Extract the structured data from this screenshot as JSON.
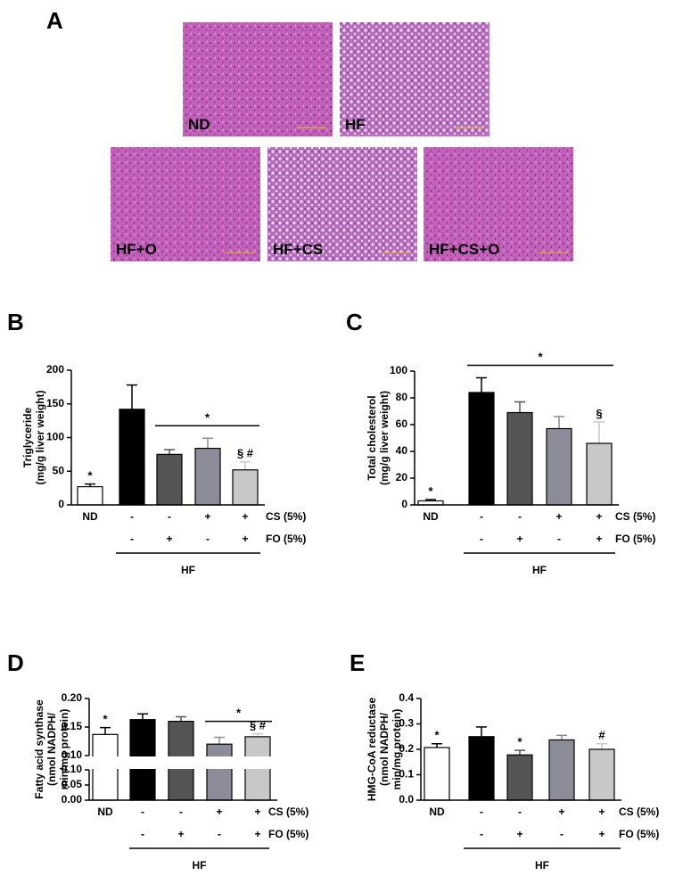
{
  "panel_a": {
    "label": "A",
    "images": [
      "ND",
      "HF",
      "HF+O",
      "HF+CS",
      "HF+CS+O"
    ]
  },
  "chart_data": [
    {
      "type": "bar",
      "label": "B",
      "ylabel": [
        "Triglyceride",
        "(mg/g liver weight)"
      ],
      "categories": [
        "ND",
        null,
        null,
        null,
        null
      ],
      "colors": [
        "#ffffff",
        "#000000",
        "#555555",
        "#8c8c98",
        "#c8c8c8"
      ],
      "values": [
        27,
        142,
        75,
        84,
        52
      ],
      "errors": [
        4,
        36,
        7,
        15,
        12
      ],
      "ylim": [
        0,
        200
      ],
      "yticks": [
        0,
        50,
        100,
        150,
        200
      ],
      "rows": [
        {
          "label": "CS (5%)",
          "marks": [
            null,
            "-",
            "-",
            "+",
            "+"
          ]
        },
        {
          "label": "FO (5%)",
          "marks": [
            null,
            "-",
            "+",
            "-",
            "+"
          ]
        }
      ],
      "group": "HF",
      "annotations": [
        {
          "text": "*",
          "bar": 0
        },
        {
          "text": "*",
          "bars": [
            2,
            4
          ]
        },
        {
          "text": "§ #",
          "bar": 4
        }
      ]
    },
    {
      "type": "bar",
      "label": "C",
      "ylabel": [
        "Total cholesterol",
        "(mg/g liver weight)"
      ],
      "categories": [
        "ND",
        null,
        null,
        null,
        null
      ],
      "colors": [
        "#ffffff",
        "#000000",
        "#555555",
        "#8c8c98",
        "#c8c8c8"
      ],
      "values": [
        3,
        84,
        69,
        57,
        46
      ],
      "errors": [
        1,
        11,
        8,
        9,
        16
      ],
      "ylim": [
        0,
        100
      ],
      "yticks": [
        0,
        20,
        40,
        60,
        80,
        100
      ],
      "rows": [
        {
          "label": "CS (5%)",
          "marks": [
            null,
            "-",
            "-",
            "+",
            "+"
          ]
        },
        {
          "label": "FO (5%)",
          "marks": [
            null,
            "-",
            "+",
            "-",
            "+"
          ]
        }
      ],
      "group": "HF",
      "annotations": [
        {
          "text": "*",
          "bar": 0
        },
        {
          "text": "*",
          "bars": [
            1,
            4
          ]
        },
        {
          "text": "§",
          "bar": 4
        }
      ]
    },
    {
      "type": "bar",
      "label": "D",
      "ylabel": [
        "Fatty acid synthase",
        "(nmol NADPH/",
        "min/mg protein)"
      ],
      "categories": [
        "ND",
        null,
        null,
        null,
        null
      ],
      "colors": [
        "#ffffff",
        "#000000",
        "#555555",
        "#8c8c98",
        "#c8c8c8"
      ],
      "values": [
        0.137,
        0.163,
        0.16,
        0.12,
        0.133
      ],
      "errors": [
        0.012,
        0.01,
        0.008,
        0.012,
        0.005
      ],
      "segments": [
        {
          "ylim": [
            0,
            0.1
          ],
          "yticks": [
            {
              "value": 0,
              "label": "0.00"
            },
            {
              "value": 0.05,
              "label": "0.05"
            },
            {
              "value": 0.1,
              "label": "0.10"
            }
          ]
        },
        {
          "ylim": [
            0.1,
            0.2
          ],
          "yticks": [
            {
              "value": 0.1,
              "label": "0.10"
            },
            {
              "value": 0.15,
              "label": "0.15"
            },
            {
              "value": 0.2,
              "label": "0.20"
            }
          ]
        }
      ],
      "rows": [
        {
          "label": "CS (5%)",
          "marks": [
            null,
            "-",
            "-",
            "+",
            "+"
          ]
        },
        {
          "label": "FO (5%)",
          "marks": [
            null,
            "-",
            "+",
            "-",
            "+"
          ]
        }
      ],
      "group": "HF",
      "annotations": [
        {
          "text": "*",
          "bar": 0
        },
        {
          "text": "*",
          "bars": [
            3,
            4
          ]
        },
        {
          "text": "§ #",
          "bar": 4
        }
      ]
    },
    {
      "type": "bar",
      "label": "E",
      "ylabel": [
        "HMG-CoA reductase",
        "(nmol NADPH/",
        "min/mg protein)"
      ],
      "categories": [
        "ND",
        null,
        null,
        null,
        null
      ],
      "colors": [
        "#ffffff",
        "#000000",
        "#555555",
        "#8c8c98",
        "#c8c8c8"
      ],
      "values": [
        0.207,
        0.25,
        0.178,
        0.237,
        0.2
      ],
      "errors": [
        0.015,
        0.038,
        0.018,
        0.018,
        0.022
      ],
      "ylim": [
        0,
        0.4
      ],
      "yticks": [
        {
          "value": 0,
          "label": "0.0"
        },
        {
          "value": 0.1,
          "label": "0.1"
        },
        {
          "value": 0.2,
          "label": "0.2"
        },
        {
          "value": 0.3,
          "label": "0.3"
        },
        {
          "value": 0.4,
          "label": "0.4"
        }
      ],
      "rows": [
        {
          "label": "CS (5%)",
          "marks": [
            null,
            "-",
            "-",
            "+",
            "+"
          ]
        },
        {
          "label": "FO (5%)",
          "marks": [
            null,
            "-",
            "+",
            "-",
            "+"
          ]
        }
      ],
      "group": "HF",
      "annotations": [
        {
          "text": "*",
          "bar": 0
        },
        {
          "text": "*",
          "bar": 2
        },
        {
          "text": "#",
          "bar": 4
        }
      ]
    }
  ]
}
